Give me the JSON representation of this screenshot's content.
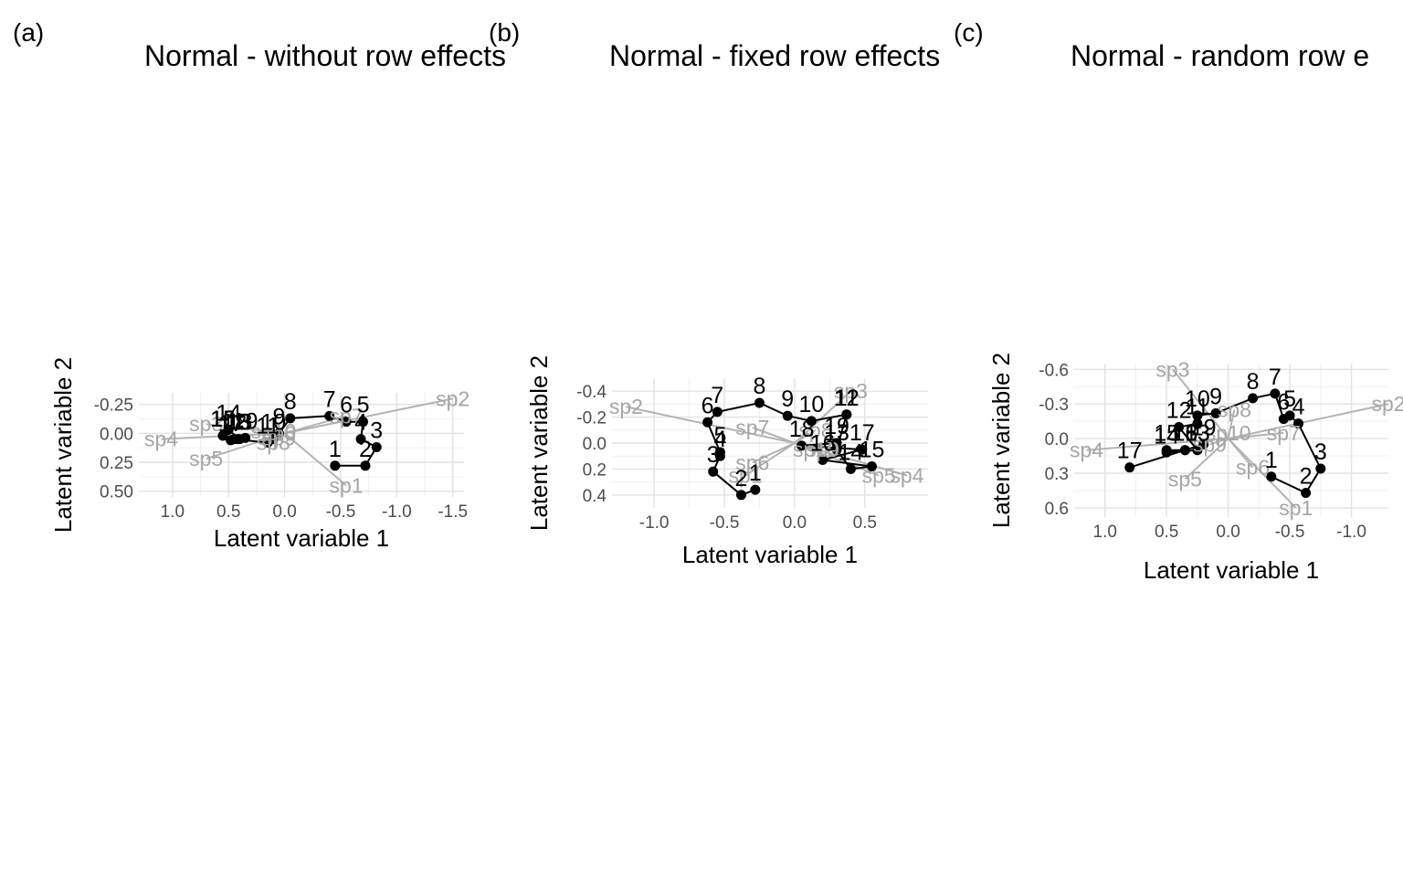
{
  "chart_data": [
    {
      "type": "scatter",
      "tag": "(a)",
      "title": "Normal - without row effects",
      "xlabel": "Latent variable 1",
      "ylabel": "Latent variable 2",
      "x_reversed": true,
      "y_reversed": true,
      "xlim": [
        1.3,
        -1.6
      ],
      "ylim": [
        -0.35,
        0.55
      ],
      "xticks": [
        1.0,
        0.5,
        0.0,
        -0.5,
        -1.0,
        -1.5
      ],
      "xtick_labels": [
        "1.0",
        "0.5",
        "0.0",
        "-0.5",
        "-1.0",
        "-1.5"
      ],
      "yticks": [
        -0.25,
        0.0,
        0.25,
        0.5
      ],
      "ytick_labels": [
        "-0.25",
        "0.00",
        "0.25",
        "0.50"
      ],
      "sites": [
        {
          "label": "1",
          "x": -0.45,
          "y": 0.28
        },
        {
          "label": "2",
          "x": -0.72,
          "y": 0.28
        },
        {
          "label": "3",
          "x": -0.82,
          "y": 0.12
        },
        {
          "label": "4",
          "x": -0.68,
          "y": 0.05
        },
        {
          "label": "5",
          "x": -0.7,
          "y": -0.1
        },
        {
          "label": "6",
          "x": -0.55,
          "y": -0.1
        },
        {
          "label": "7",
          "x": -0.4,
          "y": -0.15
        },
        {
          "label": "8",
          "x": -0.05,
          "y": -0.13
        },
        {
          "label": "9",
          "x": 0.05,
          "y": 0.0
        },
        {
          "label": "10",
          "x": 0.1,
          "y": 0.05
        },
        {
          "label": "11",
          "x": 0.15,
          "y": 0.08
        },
        {
          "label": "12",
          "x": 0.45,
          "y": 0.05
        },
        {
          "label": "13",
          "x": 0.4,
          "y": 0.05
        },
        {
          "label": "14",
          "x": 0.5,
          "y": -0.03
        },
        {
          "label": "15",
          "x": 0.55,
          "y": 0.02
        },
        {
          "label": "16",
          "x": 0.55,
          "y": 0.02
        },
        {
          "label": "17",
          "x": 0.48,
          "y": 0.06
        },
        {
          "label": "18",
          "x": 0.42,
          "y": 0.05
        },
        {
          "label": "19",
          "x": 0.35,
          "y": 0.04
        }
      ],
      "species": [
        {
          "label": "sp1",
          "x": -0.55,
          "y": 0.45
        },
        {
          "label": "sp2",
          "x": -1.5,
          "y": -0.3
        },
        {
          "label": "sp3",
          "x": 0.7,
          "y": -0.08
        },
        {
          "label": "sp4",
          "x": 1.1,
          "y": 0.05
        },
        {
          "label": "sp5",
          "x": 0.7,
          "y": 0.22
        },
        {
          "label": "sp6",
          "x": 0.05,
          "y": 0.0
        },
        {
          "label": "sp7",
          "x": -0.55,
          "y": -0.15
        },
        {
          "label": "sp8",
          "x": 0.1,
          "y": 0.08
        },
        {
          "label": "sp9",
          "x": 0.05,
          "y": 0.04
        },
        {
          "label": "sp10",
          "x": 0.1,
          "y": -0.02
        }
      ]
    },
    {
      "type": "scatter",
      "tag": "(b)",
      "title": "Normal - fixed row effects",
      "xlabel": "Latent variable 1",
      "ylabel": "Latent variable 2",
      "x_reversed": false,
      "y_reversed": true,
      "xlim": [
        -1.3,
        0.95
      ],
      "ylim": [
        -0.5,
        0.5
      ],
      "xticks": [
        -1.0,
        -0.5,
        0.0,
        0.5
      ],
      "xtick_labels": [
        "-1.0",
        "-0.5",
        "0.0",
        "0.5"
      ],
      "yticks": [
        -0.4,
        -0.2,
        0.0,
        0.2,
        0.4
      ],
      "ytick_labels": [
        "-0.4",
        "-0.2",
        "0.0",
        "0.2",
        "0.4"
      ],
      "sites": [
        {
          "label": "1",
          "x": -0.28,
          "y": 0.36
        },
        {
          "label": "2",
          "x": -0.38,
          "y": 0.4
        },
        {
          "label": "3",
          "x": -0.58,
          "y": 0.22
        },
        {
          "label": "4",
          "x": -0.53,
          "y": 0.1
        },
        {
          "label": "5",
          "x": -0.53,
          "y": 0.07
        },
        {
          "label": "6",
          "x": -0.62,
          "y": -0.16
        },
        {
          "label": "7",
          "x": -0.55,
          "y": -0.24
        },
        {
          "label": "8",
          "x": -0.25,
          "y": -0.31
        },
        {
          "label": "9",
          "x": -0.05,
          "y": -0.21
        },
        {
          "label": "10",
          "x": 0.12,
          "y": -0.17
        },
        {
          "label": "11",
          "x": 0.37,
          "y": -0.22
        },
        {
          "label": "12",
          "x": 0.37,
          "y": -0.22
        },
        {
          "label": "13",
          "x": 0.3,
          "y": 0.05
        },
        {
          "label": "14",
          "x": 0.4,
          "y": 0.2
        },
        {
          "label": "15",
          "x": 0.55,
          "y": 0.18
        },
        {
          "label": "16",
          "x": 0.2,
          "y": 0.13
        },
        {
          "label": "17",
          "x": 0.48,
          "y": 0.05
        },
        {
          "label": "18",
          "x": 0.05,
          "y": 0.02
        },
        {
          "label": "19",
          "x": 0.3,
          "y": 0.0
        }
      ],
      "species": [
        {
          "label": "sp1",
          "x": -0.35,
          "y": 0.25
        },
        {
          "label": "sp2",
          "x": -1.2,
          "y": -0.28
        },
        {
          "label": "sp3",
          "x": 0.4,
          "y": -0.4
        },
        {
          "label": "sp4",
          "x": 0.8,
          "y": 0.25
        },
        {
          "label": "sp5",
          "x": 0.6,
          "y": 0.25
        },
        {
          "label": "sp6",
          "x": -0.3,
          "y": 0.15
        },
        {
          "label": "sp7",
          "x": -0.3,
          "y": -0.12
        },
        {
          "label": "sp8",
          "x": 0.15,
          "y": -0.1
        },
        {
          "label": "sp9",
          "x": 0.2,
          "y": 0.05
        },
        {
          "label": "sp10",
          "x": 0.15,
          "y": 0.05
        }
      ]
    },
    {
      "type": "scatter",
      "tag": "(c)",
      "title": "Normal - random row e",
      "xlabel": "Latent variable 1",
      "ylabel": "Latent variable 2",
      "x_reversed": true,
      "y_reversed": true,
      "xlim": [
        1.25,
        -1.3
      ],
      "ylim": [
        -0.65,
        0.68
      ],
      "xticks": [
        1.0,
        0.5,
        0.0,
        -0.5,
        -1.0
      ],
      "xtick_labels": [
        "1.0",
        "0.5",
        "0.0",
        "-0.5",
        "-1.0"
      ],
      "yticks": [
        -0.6,
        -0.3,
        0.0,
        0.3,
        0.6
      ],
      "ytick_labels": [
        "-0.6",
        "-0.3",
        "0.0",
        "0.3",
        "0.6"
      ],
      "sites": [
        {
          "label": "1",
          "x": -0.35,
          "y": 0.33
        },
        {
          "label": "2",
          "x": -0.63,
          "y": 0.47
        },
        {
          "label": "3",
          "x": -0.75,
          "y": 0.26
        },
        {
          "label": "4",
          "x": -0.57,
          "y": -0.13
        },
        {
          "label": "5",
          "x": -0.5,
          "y": -0.2
        },
        {
          "label": "6",
          "x": -0.45,
          "y": -0.17
        },
        {
          "label": "7",
          "x": -0.38,
          "y": -0.39
        },
        {
          "label": "8",
          "x": -0.2,
          "y": -0.35
        },
        {
          "label": "9",
          "x": 0.1,
          "y": -0.22
        },
        {
          "label": "10",
          "x": 0.25,
          "y": -0.2
        },
        {
          "label": "11",
          "x": 0.25,
          "y": -0.13
        },
        {
          "label": "12",
          "x": 0.4,
          "y": -0.1
        },
        {
          "label": "13",
          "x": 0.25,
          "y": 0.1
        },
        {
          "label": "14",
          "x": 0.5,
          "y": 0.12
        },
        {
          "label": "15",
          "x": 0.5,
          "y": 0.1
        },
        {
          "label": "16",
          "x": 0.35,
          "y": 0.1
        },
        {
          "label": "17",
          "x": 0.8,
          "y": 0.25
        },
        {
          "label": "18",
          "x": 0.35,
          "y": 0.1
        },
        {
          "label": "19",
          "x": 0.2,
          "y": 0.05
        }
      ],
      "species": [
        {
          "label": "sp1",
          "x": -0.55,
          "y": 0.6
        },
        {
          "label": "sp2",
          "x": -1.3,
          "y": -0.3
        },
        {
          "label": "sp3",
          "x": 0.45,
          "y": -0.6
        },
        {
          "label": "sp4",
          "x": 1.15,
          "y": 0.1
        },
        {
          "label": "sp5",
          "x": 0.35,
          "y": 0.35
        },
        {
          "label": "sp6",
          "x": -0.2,
          "y": 0.25
        },
        {
          "label": "sp7",
          "x": -0.45,
          "y": -0.05
        },
        {
          "label": "sp8",
          "x": -0.05,
          "y": -0.25
        },
        {
          "label": "sp9",
          "x": 0.15,
          "y": 0.05
        },
        {
          "label": "sp10",
          "x": 0.0,
          "y": -0.05
        }
      ]
    }
  ]
}
